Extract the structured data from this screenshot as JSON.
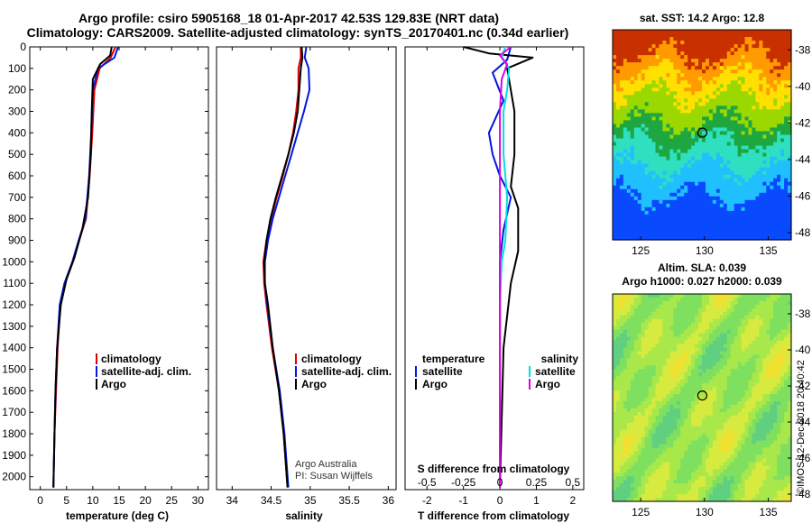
{
  "header": {
    "line1": "Argo profile: csiro 5905168_18 01-Apr-2017 42.53S 129.83E (NRT data)",
    "line2": "Climatology: CARS2009. Satellite-adjusted climatology: synTS_20170401.nc (0.34d earlier)"
  },
  "credit": {
    "line1": "Argo Australia",
    "line2": "PI: Susan Wijffels"
  },
  "timestamp": "©IMOS 12-Dec-2018 20:40:42",
  "colors": {
    "clim": "#e00000",
    "sat": "#0018e0",
    "argo": "#000000",
    "cyan": "#00e0e0",
    "magenta": "#e000e0"
  },
  "chart_data": [
    {
      "type": "line",
      "name": "temperature",
      "xlabel": "temperature (deg C)",
      "xlim": [
        -2,
        32
      ],
      "ylim": [
        2060,
        0
      ],
      "xticks": [
        0,
        5,
        10,
        15,
        20,
        25,
        30
      ],
      "xtick_labels": [
        "0",
        "5",
        "10",
        "15",
        "20",
        "25",
        "30"
      ],
      "yticks": [
        0,
        100,
        200,
        300,
        400,
        500,
        600,
        700,
        800,
        900,
        1000,
        1100,
        1200,
        1300,
        1400,
        1500,
        1600,
        1700,
        1800,
        1900,
        2000
      ],
      "legend": [
        "climatology",
        "satellite-adj. clim.",
        "Argo"
      ],
      "series": [
        {
          "name": "climatology",
          "color": "clim",
          "values": [
            [
              14.3,
              0
            ],
            [
              13.4,
              50
            ],
            [
              11.3,
              100
            ],
            [
              10.3,
              200
            ],
            [
              9.9,
              400
            ],
            [
              9.4,
              600
            ],
            [
              8.7,
              800
            ],
            [
              7.4,
              900
            ],
            [
              6.2,
              1000
            ],
            [
              4.7,
              1100
            ],
            [
              3.8,
              1200
            ],
            [
              3.3,
              1400
            ],
            [
              3.0,
              1600
            ],
            [
              2.7,
              1800
            ],
            [
              2.5,
              2050
            ]
          ]
        },
        {
          "name": "satellite-adj. clim.",
          "color": "sat",
          "values": [
            [
              14.8,
              0
            ],
            [
              14.1,
              50
            ],
            [
              11.0,
              100
            ],
            [
              10.0,
              200
            ],
            [
              9.7,
              400
            ],
            [
              9.3,
              600
            ],
            [
              8.6,
              800
            ],
            [
              7.3,
              900
            ],
            [
              6.1,
              1000
            ],
            [
              4.6,
              1100
            ],
            [
              3.7,
              1200
            ],
            [
              3.2,
              1400
            ],
            [
              2.9,
              1600
            ],
            [
              2.7,
              1800
            ],
            [
              2.5,
              2050
            ]
          ]
        },
        {
          "name": "Argo",
          "color": "argo",
          "values": [
            [
              13.6,
              0
            ],
            [
              13.3,
              40
            ],
            [
              11.4,
              80
            ],
            [
              10.0,
              150
            ],
            [
              9.8,
              300
            ],
            [
              9.6,
              500
            ],
            [
              9.1,
              700
            ],
            [
              8.0,
              850
            ],
            [
              6.5,
              980
            ],
            [
              5.0,
              1080
            ],
            [
              3.9,
              1200
            ],
            [
              3.2,
              1400
            ],
            [
              2.9,
              1600
            ],
            [
              2.7,
              1800
            ],
            [
              2.5,
              2050
            ]
          ]
        }
      ]
    },
    {
      "type": "line",
      "name": "salinity",
      "xlabel": "salinity",
      "xlim": [
        33.8,
        36.1
      ],
      "ylim": [
        2060,
        0
      ],
      "xticks": [
        34,
        34.5,
        35,
        35.5,
        36
      ],
      "xtick_labels": [
        "34",
        "34.5",
        "35",
        "35.5",
        "36"
      ],
      "legend": [
        "climatology",
        "satellite-adj. clim.",
        "Argo"
      ],
      "series": [
        {
          "name": "climatology",
          "color": "clim",
          "values": [
            [
              34.88,
              0
            ],
            [
              34.88,
              50
            ],
            [
              34.85,
              100
            ],
            [
              34.85,
              200
            ],
            [
              34.82,
              300
            ],
            [
              34.78,
              400
            ],
            [
              34.72,
              500
            ],
            [
              34.65,
              600
            ],
            [
              34.57,
              700
            ],
            [
              34.5,
              800
            ],
            [
              34.44,
              900
            ],
            [
              34.4,
              1000
            ],
            [
              34.41,
              1100
            ],
            [
              34.44,
              1200
            ],
            [
              34.51,
              1400
            ],
            [
              34.6,
              1600
            ],
            [
              34.66,
              1800
            ],
            [
              34.71,
              2050
            ]
          ]
        },
        {
          "name": "satellite-adj. clim.",
          "color": "sat",
          "values": [
            [
              34.95,
              0
            ],
            [
              34.93,
              50
            ],
            [
              34.98,
              100
            ],
            [
              34.99,
              200
            ],
            [
              34.92,
              300
            ],
            [
              34.84,
              400
            ],
            [
              34.76,
              500
            ],
            [
              34.68,
              600
            ],
            [
              34.6,
              700
            ],
            [
              34.52,
              800
            ],
            [
              34.46,
              900
            ],
            [
              34.42,
              1000
            ],
            [
              34.42,
              1100
            ],
            [
              34.45,
              1200
            ],
            [
              34.52,
              1400
            ],
            [
              34.61,
              1600
            ],
            [
              34.67,
              1800
            ],
            [
              34.72,
              2050
            ]
          ]
        },
        {
          "name": "Argo",
          "color": "argo",
          "values": [
            [
              34.89,
              0
            ],
            [
              34.9,
              50
            ],
            [
              34.88,
              100
            ],
            [
              34.86,
              200
            ],
            [
              34.84,
              300
            ],
            [
              34.79,
              400
            ],
            [
              34.72,
              500
            ],
            [
              34.64,
              600
            ],
            [
              34.56,
              700
            ],
            [
              34.49,
              800
            ],
            [
              34.44,
              900
            ],
            [
              34.41,
              1000
            ],
            [
              34.42,
              1100
            ],
            [
              34.46,
              1200
            ],
            [
              34.52,
              1400
            ],
            [
              34.6,
              1600
            ],
            [
              34.66,
              1800
            ],
            [
              34.71,
              2050
            ]
          ]
        }
      ]
    },
    {
      "type": "line",
      "name": "differences",
      "xlabel": "T difference from climatology",
      "top_label": "S difference from climatology",
      "xlim": [
        -2.6,
        2.3
      ],
      "ylim": [
        2060,
        0
      ],
      "xticks": [
        -2,
        -1,
        0,
        1,
        2
      ],
      "xtick_labels": [
        "-2",
        "-1",
        "0",
        "1",
        "2"
      ],
      "top_ticks": [
        -0.5,
        -0.25,
        0,
        0.25,
        0.5
      ],
      "top_tick_labels": [
        "-0.5",
        "-0.25",
        "0",
        "0.25",
        "0.5"
      ],
      "legend_left_title": "temperature",
      "legend_right_title": "salinity",
      "legend_left": [
        "satellite",
        "Argo"
      ],
      "legend_right": [
        "satellite",
        "Argo"
      ],
      "series": [
        {
          "name": "T satellite",
          "color": "sat",
          "values": [
            [
              0.3,
              0
            ],
            [
              0.2,
              60
            ],
            [
              -0.2,
              120
            ],
            [
              0.1,
              250
            ],
            [
              -0.3,
              400
            ],
            [
              -0.2,
              500
            ],
            [
              0.0,
              600
            ],
            [
              0.3,
              700
            ],
            [
              0.1,
              850
            ],
            [
              0.0,
              1000
            ],
            [
              0.0,
              1300
            ],
            [
              0.0,
              2050
            ]
          ]
        },
        {
          "name": "T Argo",
          "color": "argo",
          "values": [
            [
              -1.0,
              0
            ],
            [
              -0.3,
              30
            ],
            [
              0.9,
              50
            ],
            [
              0.2,
              100
            ],
            [
              0.4,
              300
            ],
            [
              0.4,
              500
            ],
            [
              0.3,
              650
            ],
            [
              0.5,
              750
            ],
            [
              0.5,
              850
            ],
            [
              0.5,
              950
            ],
            [
              0.3,
              1100
            ],
            [
              0.1,
              1400
            ],
            [
              0.0,
              2050
            ]
          ]
        },
        {
          "name": "S satellite",
          "color": "cyan",
          "values": [
            [
              0.15,
              0
            ],
            [
              0.05,
              50
            ],
            [
              0.25,
              100
            ],
            [
              0.2,
              200
            ],
            [
              0.1,
              300
            ],
            [
              0.1,
              500
            ],
            [
              0.2,
              700
            ],
            [
              0.15,
              900
            ],
            [
              0.05,
              1000
            ],
            [
              0.0,
              1200
            ],
            [
              0.0,
              2050
            ]
          ]
        },
        {
          "name": "S Argo",
          "color": "magenta",
          "values": [
            [
              0.3,
              0
            ],
            [
              0.0,
              40
            ],
            [
              0.2,
              80
            ],
            [
              0.05,
              150
            ],
            [
              0.0,
              300
            ],
            [
              0.0,
              500
            ],
            [
              0.0,
              800
            ],
            [
              0.0,
              1000
            ],
            [
              0.0,
              1200
            ],
            [
              0.0,
              2050
            ]
          ]
        }
      ]
    },
    {
      "type": "heatmap",
      "name": "sst_map",
      "title": "sat. SST: 14.2 Argo: 12.8",
      "xlim": [
        122.8,
        136.8
      ],
      "ylim": [
        -48.4,
        -36.9
      ],
      "xticks": [
        125,
        130,
        135
      ],
      "yticks": [
        -38,
        -40,
        -42,
        -44,
        -46,
        -48
      ],
      "xtick_labels": [
        "125",
        "130",
        "135"
      ],
      "ytick_labels": [
        "-38",
        "-40",
        "-42",
        "-44",
        "-46",
        "-48"
      ],
      "marker": [
        129.83,
        -42.53
      ]
    },
    {
      "type": "heatmap",
      "name": "sla_map",
      "title_line1": "Altim. SLA: 0.039",
      "title_line2": "Argo h1000: 0.027 h2000: 0.039",
      "xlim": [
        122.8,
        136.8
      ],
      "ylim": [
        -48.4,
        -36.9
      ],
      "xticks": [
        125,
        130,
        135
      ],
      "yticks": [
        -38,
        -40,
        -42,
        -44,
        -46,
        -48
      ],
      "xtick_labels": [
        "125",
        "130",
        "135"
      ],
      "ytick_labels": [
        "-38",
        "-40",
        "-42",
        "-44",
        "-46",
        "-48"
      ],
      "marker": [
        129.83,
        -42.53
      ]
    }
  ]
}
